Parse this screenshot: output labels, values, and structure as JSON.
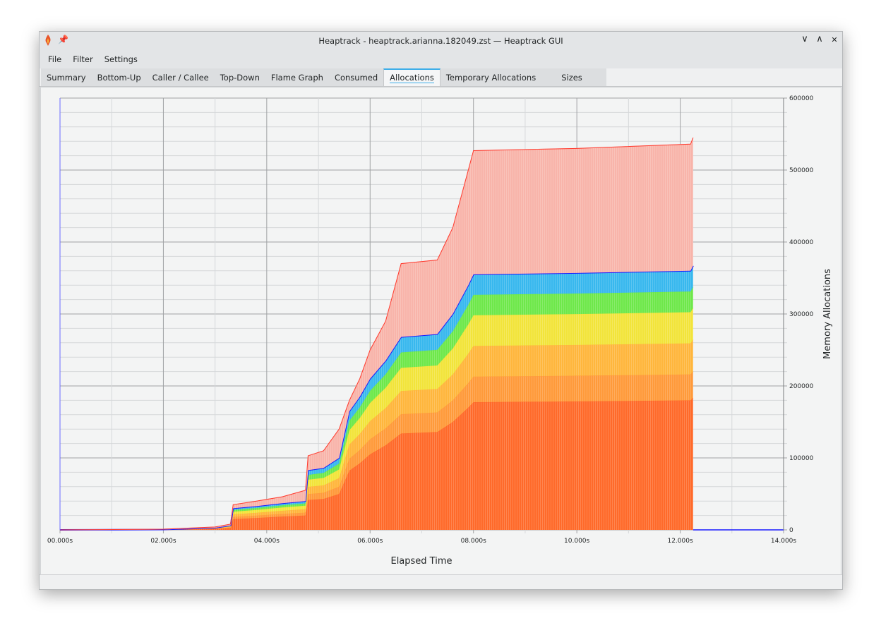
{
  "window": {
    "title": "Heaptrack - heaptrack.arianna.182049.zst — Heaptrack GUI",
    "icons": [
      "heaptrack-flame-icon",
      "pin-icon",
      "minimize-icon",
      "maximize-icon",
      "close-icon"
    ],
    "controls": {
      "minimize": "∨",
      "maximize": "∧",
      "close": "✕"
    }
  },
  "menu": {
    "items": [
      {
        "label": "File"
      },
      {
        "label": "Filter"
      },
      {
        "label": "Settings"
      }
    ]
  },
  "tabs": [
    {
      "label": "Summary"
    },
    {
      "label": "Bottom-Up"
    },
    {
      "label": "Caller / Callee"
    },
    {
      "label": "Top-Down"
    },
    {
      "label": "Flame Graph"
    },
    {
      "label": "Consumed"
    },
    {
      "label": "Allocations",
      "active": true
    },
    {
      "label": "Temporary Allocations"
    },
    {
      "label": "Sizes"
    }
  ],
  "chart_data": {
    "type": "area",
    "stacked": true,
    "xlabel": "Elapsed Time",
    "ylabel": "Memory Allocations",
    "xlim": [
      0,
      14
    ],
    "ylim": [
      0,
      600000
    ],
    "x_ticks": [
      "00.000s",
      "02.000s",
      "04.000s",
      "06.000s",
      "08.000s",
      "10.000s",
      "12.000s",
      "14.000s"
    ],
    "y_ticks": [
      "0",
      "100000",
      "200000",
      "300000",
      "400000",
      "500000",
      "600000"
    ],
    "y_axis_side": "right",
    "grid": true,
    "x": [
      0,
      2,
      3,
      3.3,
      3.35,
      3.8,
      4.3,
      4.75,
      4.8,
      5.1,
      5.4,
      5.6,
      5.8,
      6,
      6.3,
      6.6,
      7.3,
      7.6,
      7.9,
      8,
      10,
      12.2,
      12.25
    ],
    "series": [
      {
        "color": "#ff6a2a",
        "values": [
          0,
          250,
          1500,
          3000,
          15000,
          16500,
          18500,
          20000,
          41500,
          43000,
          50000,
          82500,
          92500,
          105000,
          117500,
          134000,
          136000,
          150000,
          170000,
          177500,
          178500,
          180000,
          183500
        ]
      },
      {
        "color": "#ff9a3a",
        "values": [
          0,
          50,
          300,
          600,
          3000,
          3300,
          3700,
          4000,
          8300,
          8600,
          10000,
          16500,
          18500,
          21000,
          23500,
          26800,
          27200,
          30000,
          34000,
          35500,
          35700,
          36000,
          36700
        ]
      },
      {
        "color": "#ffb63c",
        "values": [
          0,
          60,
          360,
          720,
          3600,
          3960,
          4440,
          4800,
          9960,
          10320,
          12000,
          19800,
          22200,
          25200,
          28200,
          32160,
          32640,
          36000,
          40800,
          42600,
          42840,
          43200,
          44040
        ]
      },
      {
        "color": "#f2e43a",
        "values": [
          0,
          60,
          360,
          720,
          3600,
          3960,
          4440,
          4800,
          9960,
          10320,
          12000,
          19800,
          22200,
          25200,
          28200,
          32160,
          32640,
          36000,
          40800,
          42600,
          42840,
          43200,
          44040
        ]
      },
      {
        "color": "#6ee84a",
        "values": [
          0,
          40,
          240,
          480,
          2400,
          2640,
          2960,
          3200,
          6640,
          6880,
          8000,
          13200,
          14800,
          16800,
          18800,
          21440,
          21760,
          24000,
          27200,
          28400,
          28560,
          28800,
          29360
        ]
      },
      {
        "color": "#38b8ee",
        "values": [
          0,
          40,
          240,
          480,
          2400,
          2640,
          2960,
          3200,
          6640,
          6880,
          8000,
          13200,
          14800,
          16800,
          18800,
          21440,
          21760,
          24000,
          27200,
          28400,
          28560,
          28800,
          29360
        ]
      },
      {
        "color": "#f8b4aa",
        "values": [
          0,
          500,
          1000,
          2000,
          5000,
          7000,
          9000,
          15000,
          20000,
          24000,
          40000,
          15000,
          25000,
          40000,
          55000,
          102000,
          103000,
          120000,
          160000,
          172000,
          173000,
          176000,
          178000
        ]
      }
    ],
    "line_colors": {
      "stack_top": "#1a1aff",
      "total": "#ff3b2f"
    }
  }
}
